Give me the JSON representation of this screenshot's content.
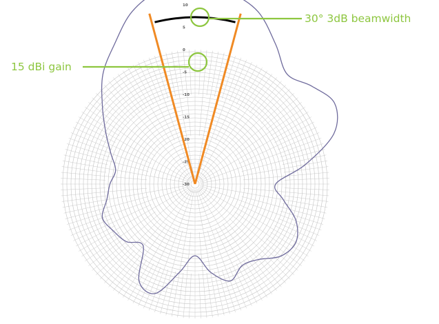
{
  "chart_data": {
    "type": "polar",
    "title": "",
    "radial_axis": {
      "unit": "dBi",
      "range": [
        -30,
        20
      ],
      "tick_labels": [
        "20",
        "15",
        "10",
        "5",
        "0",
        "-5",
        "-10",
        "-15",
        "-20",
        "-25",
        "-30"
      ],
      "tick_values": [
        20,
        15,
        10,
        5,
        0,
        -5,
        -10,
        -15,
        -20,
        -25,
        -30
      ]
    },
    "grid": true,
    "series": [
      {
        "angles_deg": [
          0,
          10,
          20,
          30,
          40,
          50,
          60,
          70,
          80,
          90,
          100,
          110,
          120,
          130,
          140,
          150,
          160,
          170,
          180,
          190,
          200,
          210,
          220,
          230,
          240,
          250,
          260,
          270,
          280,
          290,
          300,
          310,
          320,
          330,
          340,
          350
        ],
        "gain_dbi": [
          15,
          13.5,
          11,
          6,
          2,
          4,
          6,
          3,
          -5,
          -12,
          -10,
          -6,
          -4,
          -5,
          -8,
          -9,
          -7,
          -10,
          -14,
          -10,
          -4,
          -5,
          -12,
          -10,
          -9,
          -8,
          -10,
          -11,
          -12,
          -10,
          -7,
          -3,
          2,
          6,
          11,
          14
        ]
      }
    ],
    "beam": {
      "boresight_deg": 0,
      "beamwidth_deg": 30,
      "half_angle_deg": 15
    },
    "annotations": [
      {
        "id": "beamwidth",
        "text": "30° 3dB beamwidth"
      },
      {
        "id": "gain",
        "text": "15 dBi gain"
      }
    ],
    "colors": {
      "pattern": "#6e6a9c",
      "beam_lines": "#f08a24",
      "beam_arc": "#000000",
      "callout": "#8dc63f",
      "grid": "#c4c4c4"
    }
  }
}
